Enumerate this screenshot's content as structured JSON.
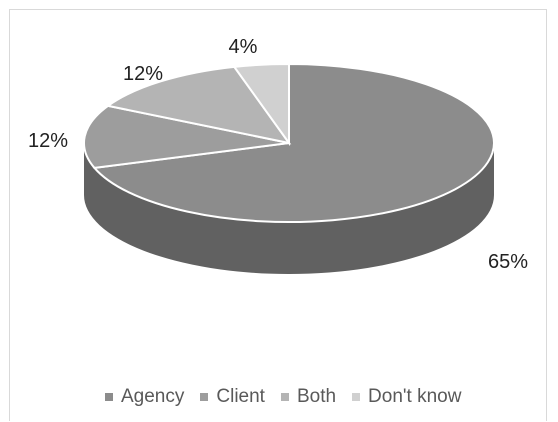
{
  "chart_data": {
    "type": "pie",
    "style": "3d",
    "categories": [
      "Agency",
      "Client",
      "Both",
      "Don't know"
    ],
    "values": [
      65,
      12,
      12,
      4
    ],
    "labels": [
      "65%",
      "12%",
      "12%",
      "4%"
    ],
    "colors": {
      "Agency": "#8c8c8c",
      "Client": "#9d9d9d",
      "Both": "#b4b4b4",
      "Don't know": "#d0d0d0",
      "side": "#616161"
    },
    "legend_position": "bottom"
  },
  "legend": {
    "items": [
      {
        "label": "Agency",
        "color": "#8c8c8c"
      },
      {
        "label": "Client",
        "color": "#9d9d9d"
      },
      {
        "label": "Both",
        "color": "#b4b4b4"
      },
      {
        "label": "Don't know",
        "color": "#d0d0d0"
      }
    ]
  }
}
